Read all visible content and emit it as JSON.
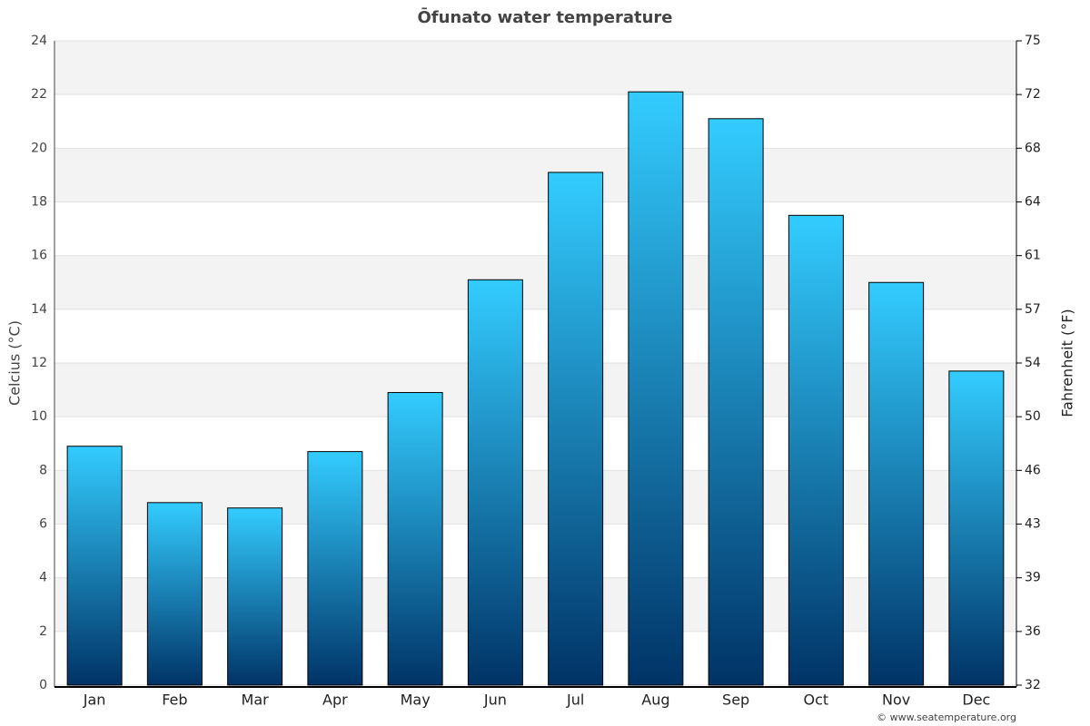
{
  "chart_data": {
    "type": "bar",
    "title": "Ōfunato water temperature",
    "ylabel": "Celcius (°C)",
    "y2label": "Fahrenheit (°F)",
    "source": "© www.seatemperature.org",
    "categories": [
      "Jan",
      "Feb",
      "Mar",
      "Apr",
      "May",
      "Jun",
      "Jul",
      "Aug",
      "Sep",
      "Oct",
      "Nov",
      "Dec"
    ],
    "values": [
      8.9,
      6.8,
      6.6,
      8.7,
      10.9,
      15.1,
      19.1,
      22.1,
      21.1,
      17.5,
      15.0,
      11.7
    ],
    "colors": [
      "#33ccff",
      "#003366"
    ],
    "ylim": [
      0,
      24
    ],
    "yticks": [
      0,
      2,
      4,
      6,
      8,
      10,
      12,
      14,
      16,
      18,
      20,
      22,
      24
    ],
    "y2lim": [
      32,
      75.2
    ],
    "y2ticks": [
      32,
      {
        "value": 35.6,
        "label": "36"
      },
      {
        "value": 39.2,
        "label": "39"
      },
      {
        "value": 42.8,
        "label": "43"
      },
      {
        "value": 46.4,
        "label": "46"
      },
      50,
      {
        "value": 53.6,
        "label": "54"
      },
      {
        "value": 57.2,
        "label": "57"
      },
      {
        "value": 60.8,
        "label": "61"
      },
      {
        "value": 64.4,
        "label": "64"
      },
      68,
      {
        "value": 71.6,
        "label": "72"
      },
      {
        "value": 75.2,
        "label": "75"
      }
    ],
    "grid": "bands"
  }
}
